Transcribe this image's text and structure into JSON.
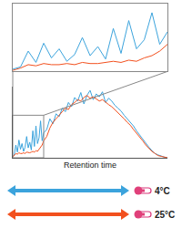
{
  "chart_data": {
    "type": "line",
    "x_label": "Retention time",
    "x": [
      0,
      1,
      2,
      3,
      4,
      5,
      6,
      7,
      8,
      9,
      10,
      11,
      12,
      13,
      14,
      15,
      16,
      17,
      18,
      19,
      20,
      22,
      24,
      26,
      28,
      30,
      32,
      34,
      36,
      38,
      40,
      42,
      44,
      46,
      48,
      50,
      52,
      54,
      56,
      58,
      60,
      62,
      64,
      66,
      68,
      70,
      72,
      74,
      76,
      78,
      80,
      82,
      84,
      86,
      88,
      90,
      92,
      94,
      96,
      98,
      100
    ],
    "xlim": [
      0,
      100
    ],
    "ylim": [
      0,
      100
    ],
    "tick_labels": false,
    "grid": false,
    "series": [
      {
        "name": "4°C",
        "color": "#3ba3dc",
        "values": [
          2,
          4,
          18,
          8,
          25,
          12,
          20,
          9,
          15,
          30,
          14,
          22,
          11,
          38,
          16,
          45,
          20,
          28,
          52,
          24,
          35,
          40,
          55,
          48,
          62,
          58,
          70,
          65,
          78,
          72,
          85,
          80,
          92,
          76,
          88,
          95,
          82,
          90,
          86,
          93,
          78,
          84,
          80,
          74,
          70,
          66,
          60,
          55,
          50,
          45,
          38,
          32,
          26,
          20,
          15,
          10,
          6,
          4,
          2,
          1,
          0
        ]
      },
      {
        "name": "25°C",
        "color": "#f2501e",
        "values": [
          1,
          3,
          6,
          5,
          7,
          6,
          6,
          7,
          6,
          8,
          7,
          7,
          8,
          9,
          8,
          10,
          9,
          12,
          14,
          18,
          24,
          30,
          42,
          50,
          55,
          60,
          64,
          70,
          68,
          75,
          78,
          82,
          80,
          85,
          88,
          84,
          86,
          83,
          80,
          82,
          78,
          75,
          72,
          68,
          64,
          60,
          55,
          50,
          46,
          40,
          35,
          30,
          24,
          18,
          13,
          9,
          6,
          3,
          2,
          1,
          0
        ]
      }
    ],
    "inset": {
      "xlim": [
        0,
        20
      ],
      "ylim": [
        0,
        60
      ]
    }
  }
}
